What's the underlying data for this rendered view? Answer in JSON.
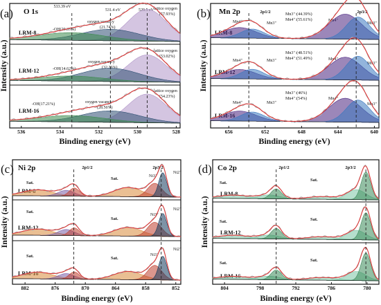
{
  "colors": {
    "raw_data": "#b0b0b0",
    "envelope": "#e03030",
    "background_line": "#222222",
    "lattice_oxygen": "#b095c8",
    "oxygen_vacancy": "#2e4f72",
    "hydroxyl": "#3d8a4f",
    "mn4": "#4a2580",
    "mn3": "#3a78c0",
    "ni_a": "#d98a3a",
    "ni_b": "#7a5fa8",
    "ni_c": "#c0402f",
    "ni_d": "#143a5c",
    "co_a": "#3a8a5a",
    "co_b": "#7ac4a4"
  },
  "chart_data": [
    {
      "id": "a",
      "panel_label": "(a)",
      "type": "line",
      "title": "O 1s",
      "xlabel": "Binding energy (eV)",
      "ylabel": "Intensity (a.u.)",
      "xlim": [
        536.6,
        527.8
      ],
      "x_reversed": true,
      "xticks": [
        536,
        534,
        532,
        530,
        528
      ],
      "dashed_lines": [
        533.39,
        531.4,
        529.5
      ],
      "top_annotations": [
        "533.39 eV",
        "531.4 eV",
        "529.5 eV"
      ],
      "series": [
        {
          "sample": "LRM-8",
          "peaks": [
            {
              "component": "lattice",
              "center": 529.5,
              "height": 1.0,
              "width": 1.0,
              "label": "lattice oxygen",
              "value": "(57.93%)"
            },
            {
              "component": "vacancy",
              "center": 531.4,
              "height": 0.36,
              "width": 1.5,
              "label": "oxygen vacancy",
              "value": "(21.74%)"
            },
            {
              "component": "hydroxyl",
              "center": 533.39,
              "height": 0.24,
              "width": 1.7,
              "label": "-OH(20.33%)"
            }
          ]
        },
        {
          "sample": "LRM-12",
          "peaks": [
            {
              "component": "lattice",
              "center": 529.5,
              "height": 0.85,
              "width": 1.0,
              "label": "lattice oxygen",
              "value": "(53.02%)"
            },
            {
              "component": "vacancy",
              "center": 531.4,
              "height": 0.42,
              "width": 1.5,
              "label": "oxygen vacancy",
              "value": "(32.36%)"
            },
            {
              "component": "hydroxyl",
              "center": 533.39,
              "height": 0.16,
              "width": 1.7,
              "label": "-OH(14.62%)"
            }
          ]
        },
        {
          "sample": "LRM-16",
          "peaks": [
            {
              "component": "lattice",
              "center": 529.5,
              "height": 0.9,
              "width": 1.0,
              "label": "lattice oxygen",
              "value": "(54.23%)"
            },
            {
              "component": "vacancy",
              "center": 531.4,
              "height": 0.36,
              "width": 1.5,
              "label": "oxygen vacancy",
              "value": "(28.56%)"
            },
            {
              "component": "hydroxyl",
              "center": 533.39,
              "height": 0.2,
              "width": 1.7,
              "label": "-OH(17.21%)"
            }
          ]
        }
      ]
    },
    {
      "id": "b",
      "panel_label": "(b)",
      "type": "line",
      "title": "Mn 2p",
      "xlabel": "Binding energy (eV)",
      "ylabel": "Intensity (a.u.)",
      "xlim": [
        658.0,
        639.5
      ],
      "x_reversed": true,
      "xticks": [
        656,
        652,
        648,
        644,
        640
      ],
      "dashed_lines": [
        653.8,
        642.0
      ],
      "top_annotations": [
        "2p1/2",
        "2p3/2"
      ],
      "series": [
        {
          "sample": "LRM-8",
          "ratio": [
            "Mn3⁺:(44.39%)",
            "Mn4⁺:(55.61%)"
          ],
          "peaks": [
            {
              "component": "mn4",
              "center": 643.2,
              "height": 0.9,
              "width": 1.8,
              "label": "Mn4⁺"
            },
            {
              "component": "mn3",
              "center": 641.8,
              "height": 0.8,
              "width": 1.3,
              "label": "Mn3⁺"
            },
            {
              "component": "mn4",
              "center": 654.8,
              "height": 0.38,
              "width": 1.8,
              "label": "Mn4⁺"
            },
            {
              "component": "mn3",
              "center": 653.4,
              "height": 0.33,
              "width": 1.3,
              "label": "Mn3⁺"
            }
          ]
        },
        {
          "sample": "LRM-12",
          "ratio": [
            "Mn3⁺:(48.51%)",
            "Mn4⁺:(51.49%)"
          ],
          "peaks": [
            {
              "component": "mn4",
              "center": 643.2,
              "height": 0.82,
              "width": 1.8,
              "label": "Mn4⁺"
            },
            {
              "component": "mn3",
              "center": 641.8,
              "height": 0.86,
              "width": 1.3,
              "label": "Mn3⁺"
            },
            {
              "component": "mn4",
              "center": 654.8,
              "height": 0.34,
              "width": 1.8,
              "label": "Mn4⁺"
            },
            {
              "component": "mn3",
              "center": 653.4,
              "height": 0.35,
              "width": 1.3,
              "label": "Mn3⁺"
            }
          ]
        },
        {
          "sample": "LRM-16",
          "ratio": [
            "Mn3⁺:(46%)",
            "Mn4⁺:(54%)"
          ],
          "peaks": [
            {
              "component": "mn4",
              "center": 643.2,
              "height": 0.86,
              "width": 1.8,
              "label": "Mn4⁺"
            },
            {
              "component": "mn3",
              "center": 641.8,
              "height": 0.8,
              "width": 1.3,
              "label": "Mn3⁺"
            },
            {
              "component": "mn4",
              "center": 654.8,
              "height": 0.36,
              "width": 1.8,
              "label": "Mn4⁺"
            },
            {
              "component": "mn3",
              "center": 653.4,
              "height": 0.33,
              "width": 1.3,
              "label": "Mn3⁺"
            }
          ]
        }
      ]
    },
    {
      "id": "c",
      "panel_label": "(c)",
      "type": "line",
      "title": "Ni 2p",
      "xlabel": "Binding energy (eV)",
      "ylabel": "Intensity (a.u.)",
      "xlim": [
        884.5,
        851.0
      ],
      "x_reversed": true,
      "xticks": [
        882,
        876,
        870,
        864,
        858,
        852
      ],
      "dashed_lines": [
        872.3,
        854.9
      ],
      "top_annotations": [
        "2p1/2",
        "2p3/2"
      ],
      "series": [
        {
          "sample": "LRM-8",
          "labels": [
            "Sat.",
            "Sat.",
            "Ni3⁺",
            "Ni2⁺"
          ],
          "peaks": [
            {
              "component": "ni_a",
              "center": 879.5,
              "height": 0.25,
              "width": 3.0
            },
            {
              "component": "ni_b",
              "center": 873.8,
              "height": 0.24,
              "width": 1.6
            },
            {
              "component": "ni_c",
              "center": 872.2,
              "height": 0.34,
              "width": 1.0
            },
            {
              "component": "ni_a",
              "center": 861.5,
              "height": 0.38,
              "width": 2.8
            },
            {
              "component": "ni_c",
              "center": 856.2,
              "height": 0.56,
              "width": 1.4
            },
            {
              "component": "ni_d",
              "center": 854.6,
              "height": 1.0,
              "width": 0.8
            }
          ]
        },
        {
          "sample": "LRM-12",
          "labels": [
            "Sat.",
            "Sat.",
            "Ni3⁺",
            "Ni2⁺"
          ],
          "peaks": [
            {
              "component": "ni_a",
              "center": 879.5,
              "height": 0.26,
              "width": 3.0
            },
            {
              "component": "ni_b",
              "center": 873.8,
              "height": 0.25,
              "width": 1.6
            },
            {
              "component": "ni_c",
              "center": 872.2,
              "height": 0.32,
              "width": 1.0
            },
            {
              "component": "ni_a",
              "center": 861.5,
              "height": 0.36,
              "width": 2.8
            },
            {
              "component": "ni_c",
              "center": 856.2,
              "height": 0.58,
              "width": 1.4
            },
            {
              "component": "ni_d",
              "center": 854.6,
              "height": 0.95,
              "width": 0.8
            }
          ]
        },
        {
          "sample": "LRM-16",
          "labels": [
            "Sat.",
            "Sat.",
            "Ni3⁺",
            "Ni2⁺"
          ],
          "peaks": [
            {
              "component": "ni_a",
              "center": 879.5,
              "height": 0.28,
              "width": 3.0
            },
            {
              "component": "ni_b",
              "center": 873.8,
              "height": 0.23,
              "width": 1.6
            },
            {
              "component": "ni_c",
              "center": 872.2,
              "height": 0.3,
              "width": 1.0
            },
            {
              "component": "ni_a",
              "center": 861.5,
              "height": 0.34,
              "width": 2.8
            },
            {
              "component": "ni_c",
              "center": 856.2,
              "height": 0.6,
              "width": 1.4
            },
            {
              "component": "ni_d",
              "center": 854.6,
              "height": 0.98,
              "width": 0.8
            }
          ]
        }
      ]
    },
    {
      "id": "d",
      "panel_label": "(d)",
      "type": "line",
      "title": "Co 2p",
      "xlabel": "Binding energy (eV)",
      "ylabel": "Intensity (a.u.)",
      "xlim": [
        806.0,
        778.0
      ],
      "x_reversed": true,
      "xticks": [
        804,
        798,
        792,
        786,
        780
      ],
      "dashed_lines": [
        795.3,
        780.2
      ],
      "top_annotations": [
        "2p1/2",
        "2p3/2"
      ],
      "series": [
        {
          "sample": "LRM-8",
          "labels": [
            "Sat.",
            "Sat."
          ],
          "peaks": [
            {
              "component": "co_b",
              "center": 802.5,
              "height": 0.12,
              "width": 2.5
            },
            {
              "component": "co_b",
              "center": 796.5,
              "height": 0.14,
              "width": 1.8
            },
            {
              "component": "co_a",
              "center": 795.3,
              "height": 0.36,
              "width": 0.9
            },
            {
              "component": "co_b",
              "center": 787.5,
              "height": 0.1,
              "width": 2.5
            },
            {
              "component": "co_b",
              "center": 781.8,
              "height": 0.36,
              "width": 1.6
            },
            {
              "component": "co_a",
              "center": 780.2,
              "height": 1.0,
              "width": 0.8
            }
          ]
        },
        {
          "sample": "LRM-12",
          "labels": [
            "Sat.",
            "Sat."
          ],
          "peaks": [
            {
              "component": "co_b",
              "center": 802.5,
              "height": 0.12,
              "width": 2.5
            },
            {
              "component": "co_b",
              "center": 796.5,
              "height": 0.14,
              "width": 1.8
            },
            {
              "component": "co_a",
              "center": 795.3,
              "height": 0.38,
              "width": 0.9
            },
            {
              "component": "co_b",
              "center": 787.5,
              "height": 0.1,
              "width": 2.5
            },
            {
              "component": "co_b",
              "center": 781.8,
              "height": 0.34,
              "width": 1.6
            },
            {
              "component": "co_a",
              "center": 780.2,
              "height": 0.98,
              "width": 0.8
            }
          ]
        },
        {
          "sample": "LRM-16",
          "labels": [
            "Sat.",
            "Sat."
          ],
          "peaks": [
            {
              "component": "co_b",
              "center": 802.5,
              "height": 0.11,
              "width": 2.5
            },
            {
              "component": "co_b",
              "center": 796.5,
              "height": 0.13,
              "width": 1.8
            },
            {
              "component": "co_a",
              "center": 795.3,
              "height": 0.35,
              "width": 0.9
            },
            {
              "component": "co_b",
              "center": 787.5,
              "height": 0.1,
              "width": 2.5
            },
            {
              "component": "co_b",
              "center": 781.8,
              "height": 0.33,
              "width": 1.6
            },
            {
              "component": "co_a",
              "center": 780.2,
              "height": 1.0,
              "width": 0.8
            }
          ]
        }
      ]
    }
  ]
}
